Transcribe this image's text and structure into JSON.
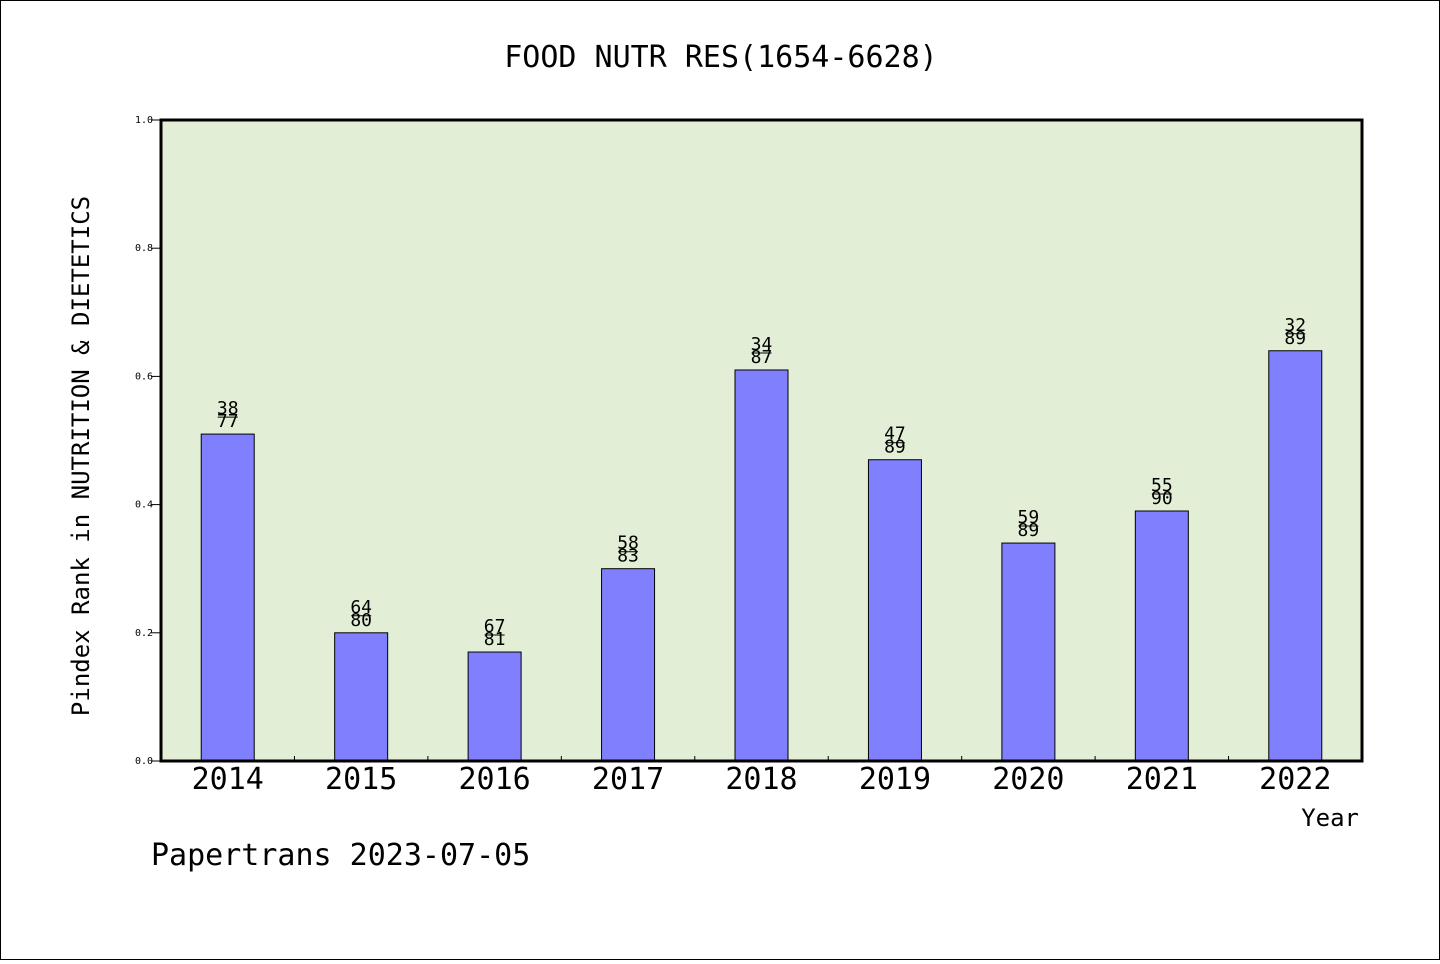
{
  "chart_data": {
    "type": "bar",
    "title": "FOOD NUTR RES(1654-6628)",
    "xlabel": "Year",
    "ylabel": "Pindex Rank in NUTRITION & DIETETICS",
    "categories": [
      "2014",
      "2015",
      "2016",
      "2017",
      "2018",
      "2019",
      "2020",
      "2021",
      "2022"
    ],
    "values": [
      0.51,
      0.2,
      0.17,
      0.3,
      0.61,
      0.47,
      0.34,
      0.39,
      0.64
    ],
    "labels": [
      [
        "38",
        "77"
      ],
      [
        "64",
        "80"
      ],
      [
        "67",
        "81"
      ],
      [
        "58",
        "83"
      ],
      [
        "34",
        "87"
      ],
      [
        "47",
        "89"
      ],
      [
        "59",
        "89"
      ],
      [
        "55",
        "90"
      ],
      [
        "32",
        "89"
      ]
    ],
    "ylim": [
      0,
      1.0
    ],
    "yticks": [
      "0.0",
      "0.2",
      "0.4",
      "0.6",
      "0.8",
      "1.0"
    ],
    "grid": false,
    "colors": {
      "plot_background": "#e2efd6",
      "bar": "#8080ff",
      "bar_edge": "#000000"
    }
  },
  "footer": {
    "credit": "Papertrans 2023-07-05"
  }
}
